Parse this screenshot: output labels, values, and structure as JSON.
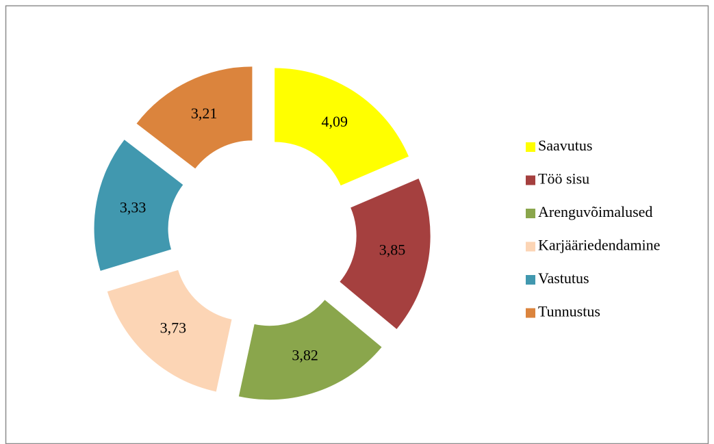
{
  "chart_data": {
    "type": "donut",
    "categories": [
      "Saavutus",
      "Töö sisu",
      "Arenguvõimalused",
      "Karjääriedendamine",
      "Vastutus",
      "Tunnustus"
    ],
    "values": [
      4.09,
      3.85,
      3.82,
      3.73,
      3.33,
      3.21
    ],
    "value_labels": [
      "4,09",
      "3,85",
      "3,82",
      "3,73",
      "3,33",
      "3,21"
    ],
    "colors": [
      "#ffff00",
      "#a5403f",
      "#8aa64c",
      "#fcd5b5",
      "#4198af",
      "#db843d"
    ],
    "legend": "right"
  }
}
